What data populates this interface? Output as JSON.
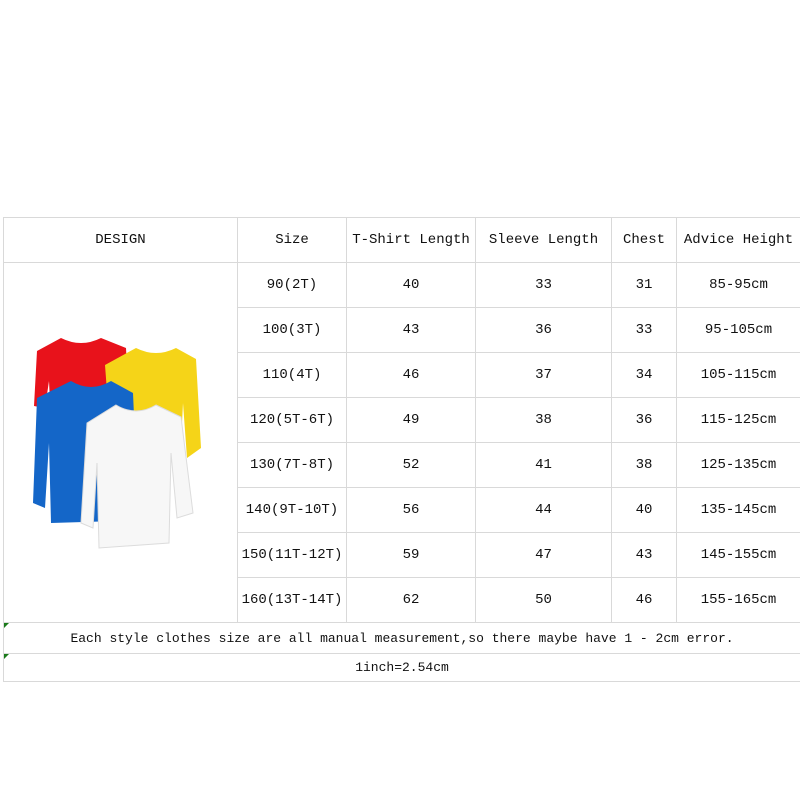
{
  "headers": [
    "DESIGN",
    "Size",
    "T-Shirt Length",
    "Sleeve Length",
    "Chest",
    "Advice Height"
  ],
  "rows": [
    [
      "90(2T)",
      "40",
      "33",
      "31",
      "85-95cm"
    ],
    [
      "100(3T)",
      "43",
      "36",
      "33",
      "95-105cm"
    ],
    [
      "110(4T)",
      "46",
      "37",
      "34",
      "105-115cm"
    ],
    [
      "120(5T-6T)",
      "49",
      "38",
      "36",
      "115-125cm"
    ],
    [
      "130(7T-8T)",
      "52",
      "41",
      "38",
      "125-135cm"
    ],
    [
      "140(9T-10T)",
      "56",
      "44",
      "40",
      "135-145cm"
    ],
    [
      "150(11T-12T)",
      "59",
      "47",
      "43",
      "145-155cm"
    ],
    [
      "160(13T-14T)",
      "62",
      "50",
      "46",
      "155-165cm"
    ]
  ],
  "note": "Each style clothes size are all manual measurement,so there maybe have 1 - 2cm error.",
  "conversion": "1inch=2.54cm",
  "shirt_colors": {
    "red": "#e8121b",
    "yellow": "#f5d418",
    "blue": "#1466c8",
    "white": "#f7f7f7"
  }
}
